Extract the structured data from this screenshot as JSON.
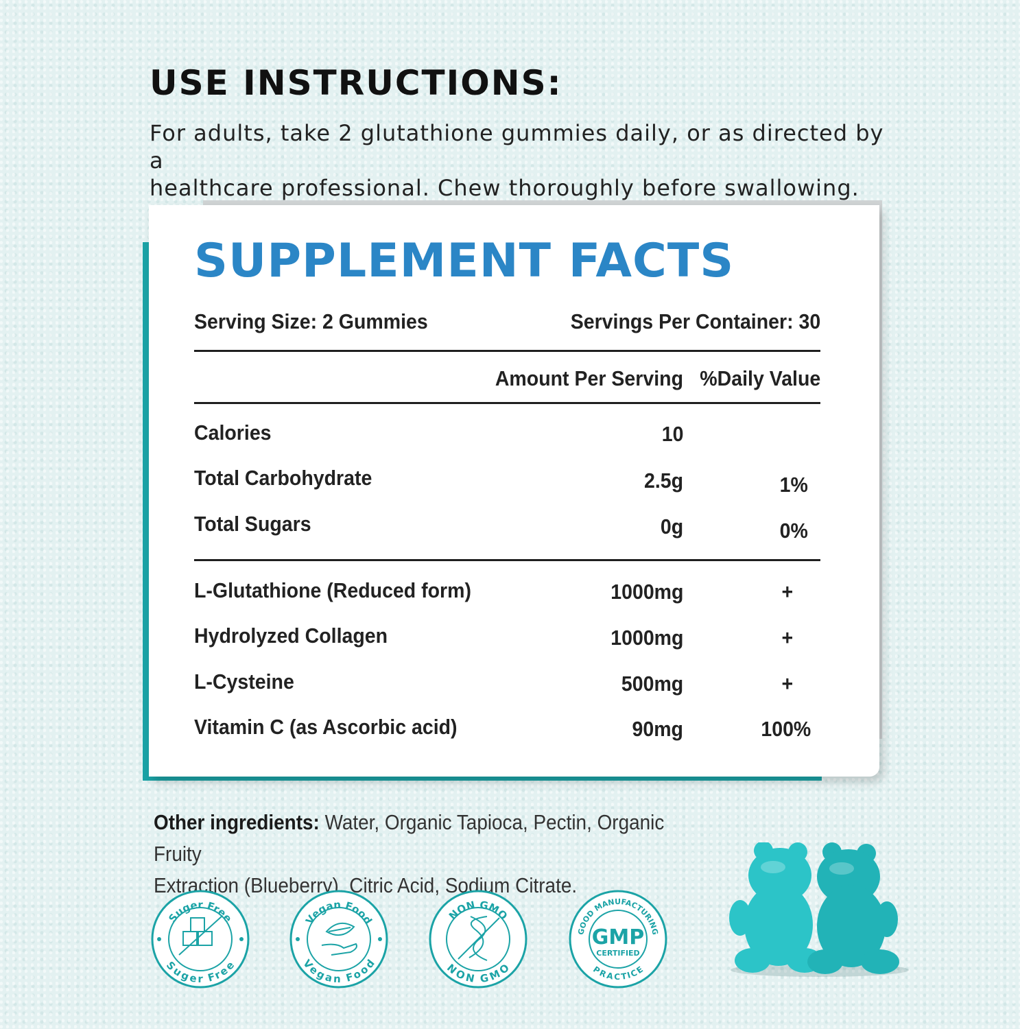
{
  "instructions": {
    "title": "USE INSTRUCTIONS:",
    "line1": "For adults, take 2 glutathione gummies daily, or as directed by a",
    "line2": "healthcare professional. Chew thoroughly before swallowing."
  },
  "facts": {
    "title": "SUPPLEMENT FACTS",
    "serving_size": "Serving Size: 2 Gummies",
    "servings_per_container": "Servings Per Container: 30",
    "col_amount": "Amount Per Serving",
    "col_dv": "%Daily Value",
    "rows": [
      {
        "name": "Calories",
        "amount": "10",
        "dv": ""
      },
      {
        "name": "Total Carbohydrate",
        "amount": "2.5g",
        "dv": "1%"
      },
      {
        "name": "Total Sugars",
        "amount": "0g",
        "dv": "0%"
      },
      {
        "name": "L-Glutathione (Reduced form)",
        "amount": "1000mg",
        "dv": "+"
      },
      {
        "name": "Hydrolyzed Collagen",
        "amount": "1000mg",
        "dv": "+"
      },
      {
        "name": "L-Cysteine",
        "amount": "500mg",
        "dv": "+"
      },
      {
        "name": "Vitamin C (as Ascorbic acid)",
        "amount": "90mg",
        "dv": "100%"
      }
    ]
  },
  "other_ingredients": {
    "label": "Other ingredients:",
    "text1": " Water, Organic Tapioca, Pectin, Organic Fruity",
    "text2": "Extraction (Blueberry), Citric Acid, Sodium Citrate."
  },
  "badges": {
    "sugar_free": {
      "top": "Suger Free",
      "bottom": "Suger Free"
    },
    "vegan": {
      "top": "Vegan Food",
      "bottom": "Vegan Food"
    },
    "non_gmo": {
      "top": "NON GMO",
      "bottom": "NON GMO"
    },
    "gmp": {
      "top": "GOOD MANUFACTURING",
      "center": "GMP",
      "sub": "CERTIFIED",
      "bottom": "PRACTICE"
    }
  },
  "colors": {
    "accent": "#1ba3a6",
    "title_blue": "#2b86c6"
  }
}
